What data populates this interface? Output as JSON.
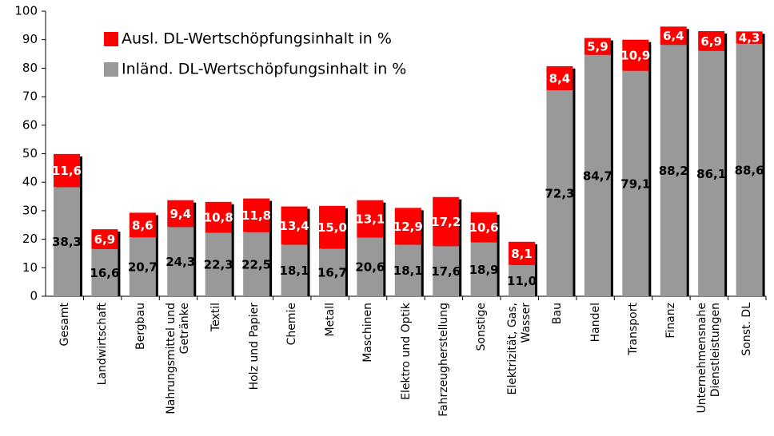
{
  "chart_data": {
    "type": "bar",
    "stacked": true,
    "categories": [
      "Gesamt",
      "Landwirtschaft",
      "Bergbau",
      "Nahrungsmittel und Getränke",
      "Textil",
      "Holz und Papier",
      "Chemie",
      "Metall",
      "Maschinen",
      "Elektro und Optik",
      "Fahrzeugherstellung",
      "Sonstige",
      "Elektrizität, Gas, Wasser",
      "Bau",
      "Handel",
      "Transport",
      "Finanz",
      "Unternehmensnahe Dienstleistungen",
      "Sonst. DL"
    ],
    "series": [
      {
        "name": "Inländ. DL-Wertschöpfungsinhalt in %",
        "color": "#999999",
        "values": [
          38.3,
          16.6,
          20.7,
          24.3,
          22.3,
          22.5,
          18.1,
          16.7,
          20.6,
          18.1,
          17.6,
          18.9,
          11.0,
          72.3,
          84.7,
          79.1,
          88.2,
          86.1,
          88.6
        ],
        "value_labels": [
          "38,3",
          "16,6",
          "20,7",
          "24,3",
          "22,3",
          "22,5",
          "18,1",
          "16,7",
          "20,6",
          "18,1",
          "17,6",
          "18,9",
          "11,0",
          "72,3",
          "84,7",
          "79,1",
          "88,2",
          "86,1",
          "88,6"
        ]
      },
      {
        "name": "Ausl. DL-Wertschöpfungsinhalt in %",
        "color": "#ff0000",
        "values": [
          11.6,
          6.9,
          8.6,
          9.4,
          10.8,
          11.8,
          13.4,
          15.0,
          13.1,
          12.9,
          17.2,
          10.6,
          8.1,
          8.4,
          5.9,
          10.9,
          6.4,
          6.9,
          4.3
        ],
        "value_labels": [
          "11,6",
          "6,9",
          "8,6",
          "9,4",
          "10,8",
          "11,8",
          "13,4",
          "15,0",
          "13,1",
          "12,9",
          "17,2",
          "10,6",
          "8,1",
          "8,4",
          "5,9",
          "10,9",
          "6,4",
          "6,9",
          "4,3"
        ]
      }
    ],
    "ylim": [
      0,
      100
    ],
    "yticks": [
      0,
      10,
      20,
      30,
      40,
      50,
      60,
      70,
      80,
      90,
      100
    ],
    "grid": false,
    "legend": "upper left"
  }
}
